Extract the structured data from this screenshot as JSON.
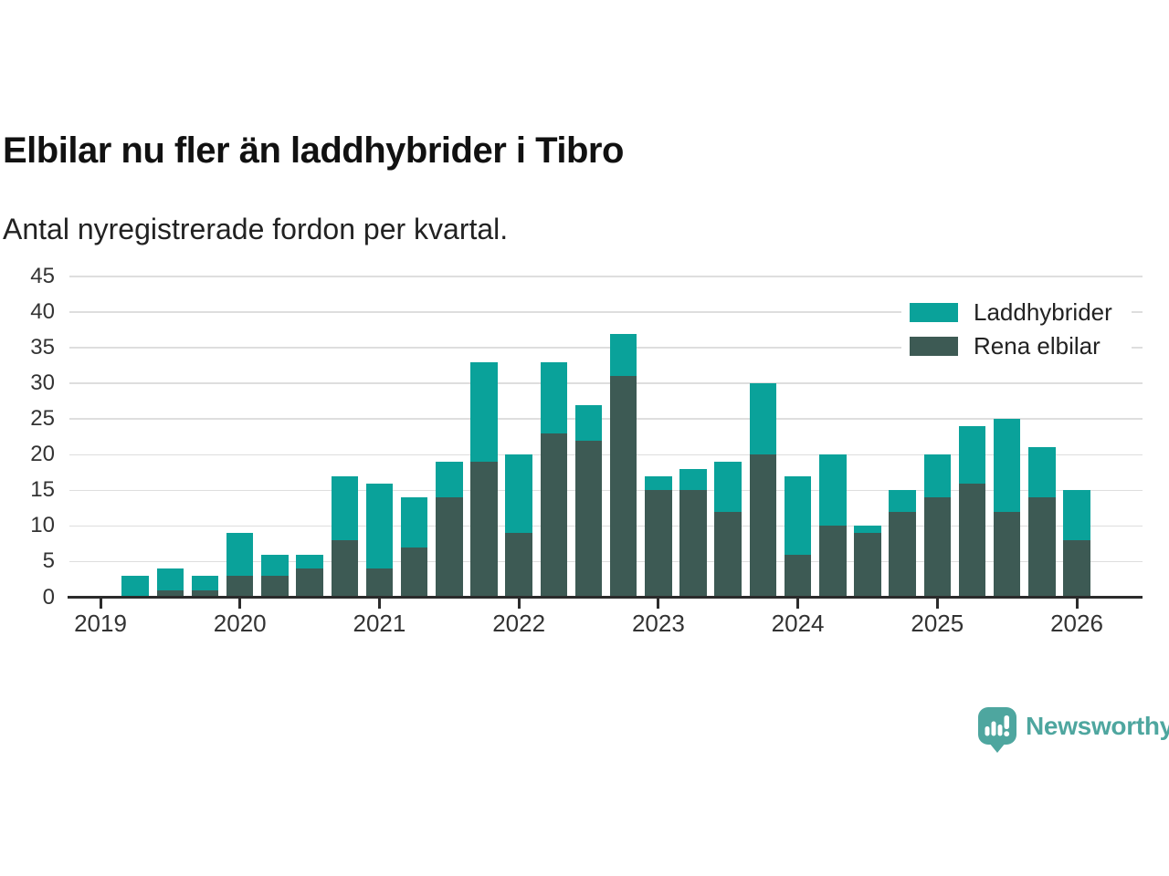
{
  "title": "Elbilar nu fler än laddhybrider i Tibro",
  "subtitle": "Antal nyregistrerade fordon per kvartal.",
  "colors": {
    "laddhybrider": "#0aa29a",
    "rena_elbilar": "#3d5a54",
    "axis": "#2b2b2b",
    "grid": "#dedede",
    "tick_text": "#333333",
    "brand_teal": "#4ea69f"
  },
  "chart_data": {
    "type": "bar",
    "stacked": true,
    "title": "Elbilar nu fler än laddhybrider i Tibro",
    "subtitle": "Antal nyregistrerade fordon per kvartal.",
    "xlabel": "",
    "ylabel": "",
    "ylim": [
      0,
      45
    ],
    "yticks": [
      0,
      5,
      10,
      15,
      20,
      25,
      30,
      35,
      40,
      45
    ],
    "grid": "horizontal",
    "legend_position": "top-right",
    "x_tick_labels": [
      "2019",
      "2020",
      "2021",
      "2022",
      "2023",
      "2024",
      "2025",
      "2026"
    ],
    "quarters": [
      "2019 Q1",
      "2019 Q2",
      "2019 Q3",
      "2019 Q4",
      "2020 Q1",
      "2020 Q2",
      "2020 Q3",
      "2020 Q4",
      "2021 Q1",
      "2021 Q2",
      "2021 Q3",
      "2021 Q4",
      "2022 Q1",
      "2022 Q2",
      "2022 Q3",
      "2022 Q4",
      "2023 Q1",
      "2023 Q2",
      "2023 Q3",
      "2023 Q4",
      "2024 Q1",
      "2024 Q2",
      "2024 Q3",
      "2024 Q4",
      "2025 Q1",
      "2025 Q2",
      "2025 Q3",
      "2025 Q4",
      "2026 Q1"
    ],
    "series": [
      {
        "name": "Rena elbilar",
        "color_key": "rena_elbilar",
        "stack_order": "bottom",
        "values": [
          0,
          0,
          1,
          1,
          3,
          3,
          4,
          8,
          4,
          7,
          14,
          19,
          9,
          23,
          22,
          31,
          15,
          15,
          12,
          20,
          6,
          10,
          9,
          12,
          14,
          16,
          12,
          14,
          8
        ]
      },
      {
        "name": "Laddhybrider",
        "color_key": "laddhybrider",
        "stack_order": "top",
        "values": [
          0,
          3,
          3,
          2,
          6,
          3,
          2,
          9,
          12,
          7,
          5,
          14,
          11,
          10,
          5,
          6,
          2,
          3,
          7,
          10,
          11,
          10,
          1,
          3,
          6,
          8,
          13,
          7,
          7
        ]
      }
    ],
    "legend": [
      "Laddhybrider",
      "Rena elbilar"
    ]
  },
  "branding": {
    "name": "Newsworthy"
  }
}
